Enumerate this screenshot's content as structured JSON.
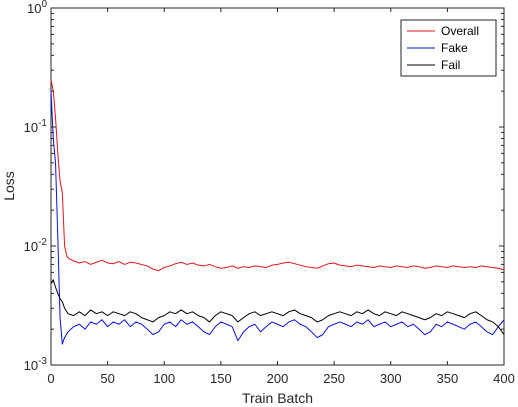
{
  "chart_data": {
    "type": "line",
    "title": "",
    "xlabel": "Train Batch",
    "ylabel": "Loss",
    "xlim": [
      0,
      400
    ],
    "ylim": [
      0.001,
      1
    ],
    "yscale": "log",
    "grid": false,
    "legend_position": "top-right",
    "x_ticks": [
      "0",
      "50",
      "100",
      "150",
      "200",
      "250",
      "300",
      "350",
      "400"
    ],
    "y_ticks": [
      {
        "base": "10",
        "exp": "0"
      },
      {
        "base": "10",
        "exp": "-1"
      },
      {
        "base": "10",
        "exp": "-2"
      },
      {
        "base": "10",
        "exp": "-3"
      }
    ],
    "series": [
      {
        "name": "Overall",
        "color": "#e0161c",
        "points": [
          [
            0,
            0.25
          ],
          [
            2,
            0.2
          ],
          [
            4,
            0.12
          ],
          [
            6,
            0.06
          ],
          [
            8,
            0.035
          ],
          [
            10,
            0.028
          ],
          [
            12,
            0.01
          ],
          [
            14,
            0.0082
          ],
          [
            16,
            0.0078
          ],
          [
            20,
            0.0075
          ],
          [
            25,
            0.0072
          ],
          [
            30,
            0.0074
          ],
          [
            35,
            0.007
          ],
          [
            40,
            0.0073
          ],
          [
            45,
            0.0076
          ],
          [
            50,
            0.0072
          ],
          [
            55,
            0.0071
          ],
          [
            60,
            0.0074
          ],
          [
            65,
            0.007
          ],
          [
            70,
            0.0073
          ],
          [
            75,
            0.0072
          ],
          [
            80,
            0.007
          ],
          [
            85,
            0.0068
          ],
          [
            90,
            0.0064
          ],
          [
            95,
            0.0062
          ],
          [
            100,
            0.0066
          ],
          [
            105,
            0.0068
          ],
          [
            110,
            0.0071
          ],
          [
            115,
            0.0073
          ],
          [
            120,
            0.007
          ],
          [
            125,
            0.0072
          ],
          [
            130,
            0.0069
          ],
          [
            135,
            0.0068
          ],
          [
            140,
            0.007
          ],
          [
            145,
            0.0067
          ],
          [
            150,
            0.0065
          ],
          [
            155,
            0.0066
          ],
          [
            160,
            0.0068
          ],
          [
            165,
            0.0065
          ],
          [
            170,
            0.0067
          ],
          [
            175,
            0.0066
          ],
          [
            180,
            0.0068
          ],
          [
            185,
            0.0067
          ],
          [
            190,
            0.0066
          ],
          [
            195,
            0.0069
          ],
          [
            200,
            0.007
          ],
          [
            205,
            0.0072
          ],
          [
            210,
            0.0073
          ],
          [
            215,
            0.0071
          ],
          [
            220,
            0.0069
          ],
          [
            225,
            0.0067
          ],
          [
            230,
            0.0066
          ],
          [
            235,
            0.0065
          ],
          [
            240,
            0.0068
          ],
          [
            245,
            0.0071
          ],
          [
            250,
            0.0072
          ],
          [
            255,
            0.0069
          ],
          [
            260,
            0.0068
          ],
          [
            265,
            0.0067
          ],
          [
            270,
            0.0069
          ],
          [
            275,
            0.0068
          ],
          [
            280,
            0.0067
          ],
          [
            285,
            0.0066
          ],
          [
            290,
            0.0068
          ],
          [
            295,
            0.0067
          ],
          [
            300,
            0.0066
          ],
          [
            305,
            0.0068
          ],
          [
            310,
            0.0067
          ],
          [
            315,
            0.0066
          ],
          [
            320,
            0.0068
          ],
          [
            325,
            0.0067
          ],
          [
            330,
            0.0065
          ],
          [
            335,
            0.0066
          ],
          [
            340,
            0.0068
          ],
          [
            345,
            0.0067
          ],
          [
            350,
            0.0066
          ],
          [
            355,
            0.0068
          ],
          [
            360,
            0.0067
          ],
          [
            365,
            0.0066
          ],
          [
            370,
            0.0067
          ],
          [
            375,
            0.0066
          ],
          [
            380,
            0.0068
          ],
          [
            385,
            0.0067
          ],
          [
            390,
            0.0066
          ],
          [
            395,
            0.0065
          ],
          [
            400,
            0.0063
          ]
        ]
      },
      {
        "name": "Fake",
        "color": "#0a14d8",
        "points": [
          [
            0,
            0.2
          ],
          [
            2,
            0.08
          ],
          [
            4,
            0.05
          ],
          [
            6,
            0.012
          ],
          [
            8,
            0.0025
          ],
          [
            10,
            0.0015
          ],
          [
            12,
            0.0017
          ],
          [
            15,
            0.0019
          ],
          [
            20,
            0.0021
          ],
          [
            25,
            0.0022
          ],
          [
            30,
            0.002
          ],
          [
            35,
            0.0023
          ],
          [
            40,
            0.0022
          ],
          [
            45,
            0.0024
          ],
          [
            50,
            0.0021
          ],
          [
            55,
            0.0023
          ],
          [
            60,
            0.0022
          ],
          [
            65,
            0.0024
          ],
          [
            70,
            0.0021
          ],
          [
            75,
            0.0023
          ],
          [
            80,
            0.0022
          ],
          [
            85,
            0.002
          ],
          [
            90,
            0.0018
          ],
          [
            95,
            0.0019
          ],
          [
            100,
            0.0022
          ],
          [
            105,
            0.0023
          ],
          [
            110,
            0.0021
          ],
          [
            115,
            0.0024
          ],
          [
            120,
            0.0022
          ],
          [
            125,
            0.0023
          ],
          [
            130,
            0.0021
          ],
          [
            135,
            0.0019
          ],
          [
            140,
            0.0018
          ],
          [
            145,
            0.0021
          ],
          [
            150,
            0.0023
          ],
          [
            155,
            0.0022
          ],
          [
            160,
            0.0021
          ],
          [
            165,
            0.0016
          ],
          [
            170,
            0.0019
          ],
          [
            175,
            0.0021
          ],
          [
            180,
            0.0022
          ],
          [
            185,
            0.0019
          ],
          [
            190,
            0.0021
          ],
          [
            195,
            0.0023
          ],
          [
            200,
            0.0022
          ],
          [
            205,
            0.0021
          ],
          [
            210,
            0.0023
          ],
          [
            215,
            0.0024
          ],
          [
            220,
            0.0022
          ],
          [
            225,
            0.0021
          ],
          [
            230,
            0.0019
          ],
          [
            235,
            0.0017
          ],
          [
            240,
            0.0018
          ],
          [
            245,
            0.0021
          ],
          [
            250,
            0.0022
          ],
          [
            255,
            0.0023
          ],
          [
            260,
            0.0022
          ],
          [
            265,
            0.0021
          ],
          [
            270,
            0.0023
          ],
          [
            275,
            0.0022
          ],
          [
            280,
            0.0024
          ],
          [
            285,
            0.0021
          ],
          [
            290,
            0.0022
          ],
          [
            295,
            0.0023
          ],
          [
            300,
            0.0021
          ],
          [
            305,
            0.0022
          ],
          [
            310,
            0.0023
          ],
          [
            315,
            0.0021
          ],
          [
            320,
            0.0022
          ],
          [
            325,
            0.002
          ],
          [
            330,
            0.0018
          ],
          [
            335,
            0.0019
          ],
          [
            340,
            0.0022
          ],
          [
            345,
            0.0021
          ],
          [
            350,
            0.0023
          ],
          [
            355,
            0.0022
          ],
          [
            360,
            0.0021
          ],
          [
            365,
            0.002
          ],
          [
            370,
            0.0022
          ],
          [
            375,
            0.0023
          ],
          [
            380,
            0.0021
          ],
          [
            385,
            0.0019
          ],
          [
            390,
            0.0018
          ],
          [
            395,
            0.0021
          ],
          [
            400,
            0.0024
          ]
        ]
      },
      {
        "name": "Fail",
        "color": "#000000",
        "points": [
          [
            0,
            0.0048
          ],
          [
            2,
            0.0052
          ],
          [
            4,
            0.0045
          ],
          [
            6,
            0.004
          ],
          [
            8,
            0.0036
          ],
          [
            10,
            0.0034
          ],
          [
            12,
            0.003
          ],
          [
            15,
            0.0027
          ],
          [
            20,
            0.0026
          ],
          [
            25,
            0.0028
          ],
          [
            30,
            0.0026
          ],
          [
            35,
            0.0029
          ],
          [
            40,
            0.0027
          ],
          [
            45,
            0.0028
          ],
          [
            50,
            0.0026
          ],
          [
            55,
            0.0028
          ],
          [
            60,
            0.0027
          ],
          [
            65,
            0.0026
          ],
          [
            70,
            0.0028
          ],
          [
            75,
            0.0027
          ],
          [
            80,
            0.0025
          ],
          [
            85,
            0.0024
          ],
          [
            90,
            0.0023
          ],
          [
            95,
            0.0025
          ],
          [
            100,
            0.0026
          ],
          [
            105,
            0.0028
          ],
          [
            110,
            0.0027
          ],
          [
            115,
            0.0029
          ],
          [
            120,
            0.0027
          ],
          [
            125,
            0.0028
          ],
          [
            130,
            0.0026
          ],
          [
            135,
            0.0025
          ],
          [
            140,
            0.0023
          ],
          [
            145,
            0.0026
          ],
          [
            150,
            0.0028
          ],
          [
            155,
            0.0027
          ],
          [
            160,
            0.0026
          ],
          [
            165,
            0.0023
          ],
          [
            170,
            0.0025
          ],
          [
            175,
            0.0027
          ],
          [
            180,
            0.0028
          ],
          [
            185,
            0.0026
          ],
          [
            190,
            0.0027
          ],
          [
            195,
            0.0028
          ],
          [
            200,
            0.0027
          ],
          [
            205,
            0.0026
          ],
          [
            210,
            0.0028
          ],
          [
            215,
            0.0029
          ],
          [
            220,
            0.0027
          ],
          [
            225,
            0.0026
          ],
          [
            230,
            0.0025
          ],
          [
            235,
            0.0023
          ],
          [
            240,
            0.0024
          ],
          [
            245,
            0.0026
          ],
          [
            250,
            0.0027
          ],
          [
            255,
            0.0028
          ],
          [
            260,
            0.0027
          ],
          [
            265,
            0.0026
          ],
          [
            270,
            0.0028
          ],
          [
            275,
            0.0027
          ],
          [
            280,
            0.0029
          ],
          [
            285,
            0.0027
          ],
          [
            290,
            0.0026
          ],
          [
            295,
            0.0028
          ],
          [
            300,
            0.0027
          ],
          [
            305,
            0.0026
          ],
          [
            310,
            0.0028
          ],
          [
            315,
            0.0027
          ],
          [
            320,
            0.0026
          ],
          [
            325,
            0.0025
          ],
          [
            330,
            0.0024
          ],
          [
            335,
            0.0025
          ],
          [
            340,
            0.0027
          ],
          [
            345,
            0.0026
          ],
          [
            350,
            0.0028
          ],
          [
            355,
            0.0027
          ],
          [
            360,
            0.0026
          ],
          [
            365,
            0.0025
          ],
          [
            370,
            0.0027
          ],
          [
            375,
            0.0028
          ],
          [
            380,
            0.0026
          ],
          [
            385,
            0.0024
          ],
          [
            390,
            0.0023
          ],
          [
            395,
            0.0021
          ],
          [
            400,
            0.0018
          ]
        ]
      }
    ]
  }
}
